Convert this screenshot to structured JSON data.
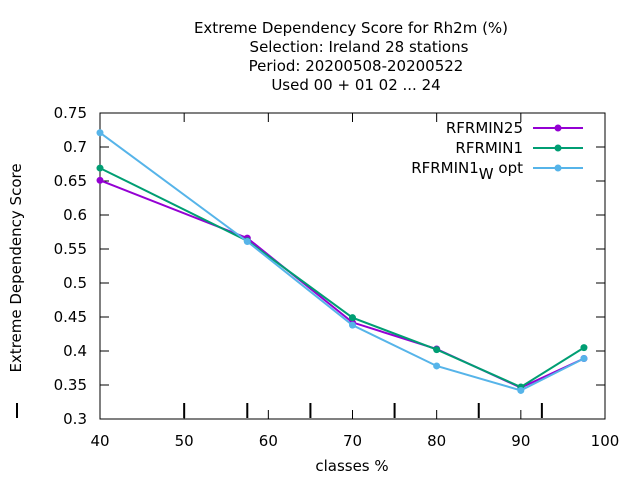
{
  "chart_data": {
    "type": "line",
    "title_lines": [
      "Extreme Dependency Score  for Rh2m (%)",
      "Selection: Ireland      28 stations",
      "Period: 20200508-20200522",
      "Used  00 + 01 02 ... 24"
    ],
    "xlabel": "classes %",
    "ylabel": "Extreme Dependency Score",
    "xlim": [
      40,
      100
    ],
    "ylim": [
      0.3,
      0.75
    ],
    "x_ticks": [
      "40",
      "50",
      "60",
      "70",
      "80",
      "90",
      "100"
    ],
    "y_ticks": [
      "0.3",
      "0.35",
      "0.4",
      "0.45",
      "0.5",
      "0.55",
      "0.6",
      "0.65",
      "0.7",
      "0.75"
    ],
    "x_tick_values": [
      40,
      50,
      60,
      70,
      80,
      90,
      100
    ],
    "y_tick_values": [
      0.3,
      0.35,
      0.4,
      0.45,
      0.5,
      0.55,
      0.6,
      0.65,
      0.7,
      0.75
    ],
    "class_markers": [
      50,
      57.5,
      65,
      75,
      85,
      92.5
    ],
    "legend_position": "top-right",
    "grid": false,
    "series": [
      {
        "name": "RFRMIN25",
        "label_main": "RFRMIN25",
        "label_sub": "",
        "label_tail": "",
        "color": "#9400d3",
        "x": [
          40,
          57.5,
          70,
          80,
          90,
          97.5
        ],
        "values": [
          0.651,
          0.566,
          0.442,
          0.403,
          0.346,
          0.389
        ]
      },
      {
        "name": "RFRMIN1",
        "label_main": "RFRMIN1",
        "label_sub": "",
        "label_tail": "",
        "color": "#009e73",
        "x": [
          40,
          57.5,
          70,
          80,
          90,
          97.5
        ],
        "values": [
          0.669,
          0.562,
          0.449,
          0.402,
          0.347,
          0.405
        ]
      },
      {
        "name": "RFRMIN1W opt",
        "label_main": "RFRMIN1",
        "label_sub": "W",
        "label_tail": " opt",
        "color": "#56b4e9",
        "x": [
          40,
          57.5,
          70,
          80,
          90,
          97.5
        ],
        "values": [
          0.721,
          0.561,
          0.438,
          0.378,
          0.342,
          0.389
        ]
      }
    ]
  }
}
